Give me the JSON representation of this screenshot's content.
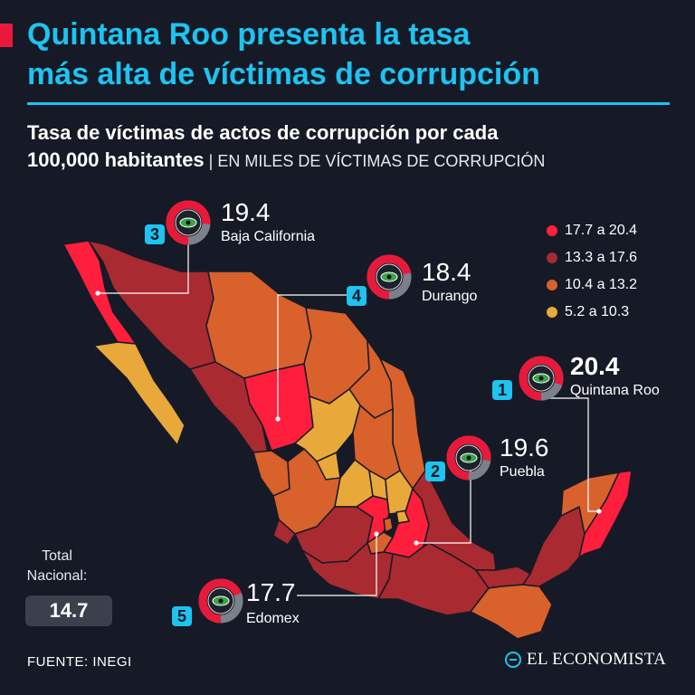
{
  "header": {
    "title_line1": "Quintana Roo presenta la tasa",
    "title_line2": "más alta de víctimas de corrupción",
    "subtitle_line1": "Tasa de víctimas de actos de corrupción por cada",
    "subtitle_bold2": "100,000 habitantes",
    "subtitle_light": " | EN MILES DE VÍCTIMAS DE CORRUPCIÓN"
  },
  "colors": {
    "background": "#161a26",
    "accent": "#1ec3f0",
    "highlight": "#e8193a",
    "range1": "#ff1f3d",
    "range2": "#a92a31",
    "range3": "#d8612c",
    "range4": "#e9a83a"
  },
  "legend": [
    {
      "label": "17.7 a 20.4",
      "color": "#ff1f3d"
    },
    {
      "label": "13.3 a 17.6",
      "color": "#a92a31"
    },
    {
      "label": "10.4 a 13.2",
      "color": "#d8612c"
    },
    {
      "label": "5.2 a 10.3",
      "color": "#e9a83a"
    }
  ],
  "callouts": [
    {
      "rank": "1",
      "value": "20.4",
      "name": "Quintana Roo",
      "ring_fraction": 0.8,
      "icon": "eye-icon"
    },
    {
      "rank": "2",
      "value": "19.6",
      "name": "Puebla",
      "ring_fraction": 0.77,
      "icon": "eye-icon"
    },
    {
      "rank": "3",
      "value": "19.4",
      "name": "Baja California",
      "ring_fraction": 0.76,
      "icon": "eye-icon"
    },
    {
      "rank": "4",
      "value": "18.4",
      "name": "Durango",
      "ring_fraction": 0.72,
      "icon": "eye-icon"
    },
    {
      "rank": "5",
      "value": "17.7",
      "name": "Edomex",
      "ring_fraction": 0.69,
      "icon": "eye-icon"
    }
  ],
  "total": {
    "label_line1": "Total",
    "label_line2": "Nacional:",
    "value": "14.7"
  },
  "footer": {
    "source": "FUENTE: INEGI",
    "brand": "EL ECONOMISTA"
  }
}
